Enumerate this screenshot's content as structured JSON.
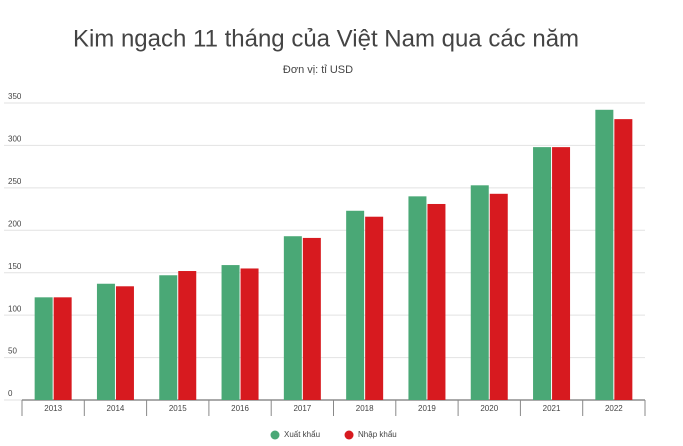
{
  "chart_data": {
    "type": "bar",
    "title": "Kim ngạch 11 tháng của Việt Nam qua các năm",
    "subtitle": "Đơn vị: tỉ USD",
    "categories": [
      "2013",
      "2014",
      "2015",
      "2016",
      "2017",
      "2018",
      "2019",
      "2020",
      "2021",
      "2022"
    ],
    "series": [
      {
        "name": "Xuất khẩu",
        "color": "#4aa876",
        "values": [
          121,
          137,
          147,
          159,
          193,
          223,
          240,
          253,
          298,
          342
        ]
      },
      {
        "name": "Nhập khẩu",
        "color": "#d71a1f",
        "values": [
          121,
          134,
          152,
          155,
          191,
          216,
          231,
          243,
          298,
          331
        ]
      }
    ],
    "ylim": [
      0,
      350
    ],
    "yticks": [
      0,
      50,
      100,
      150,
      200,
      250,
      300,
      350
    ],
    "grid": true
  }
}
